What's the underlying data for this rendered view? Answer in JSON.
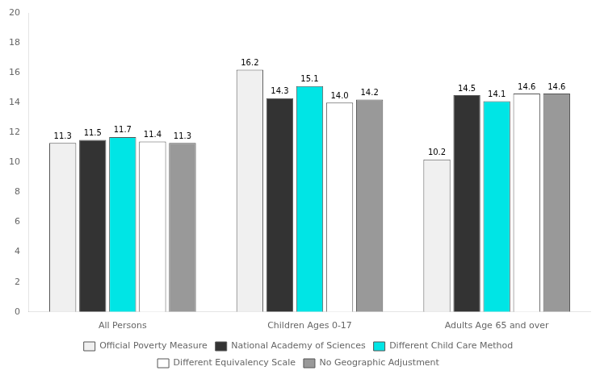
{
  "chart_data": {
    "type": "bar",
    "categories": [
      "All Persons",
      "Children Ages 0-17",
      "Adults Age 65 and over"
    ],
    "series": [
      {
        "name": "Official Poverty Measure",
        "color": "#f0f0f0",
        "values": [
          11.3,
          16.2,
          10.2
        ]
      },
      {
        "name": "National Academy of Sciences",
        "color": "#333333",
        "values": [
          11.5,
          14.3,
          14.5
        ]
      },
      {
        "name": "Different Child Care Method",
        "color": "#00e5e5",
        "values": [
          11.7,
          15.1,
          14.1
        ]
      },
      {
        "name": "Different Equivalency Scale",
        "color": "#ffffff",
        "values": [
          11.4,
          14.0,
          14.6
        ],
        "value_labels": [
          "11.4",
          "14.0",
          "14.6"
        ]
      },
      {
        "name": "No Geographic Adjustment",
        "color": "#999999",
        "values": [
          11.3,
          14.2,
          14.6
        ]
      }
    ],
    "ylim": [
      0,
      20
    ],
    "yticks": [
      0,
      2,
      4,
      6,
      8,
      10,
      12,
      14,
      16,
      18,
      20
    ],
    "grid": false,
    "legend": "bottom",
    "data_labels": true
  }
}
